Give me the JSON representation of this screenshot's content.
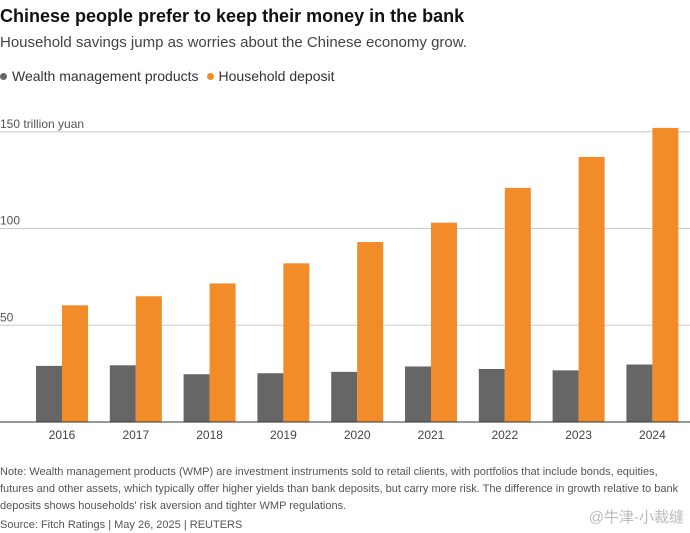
{
  "title": "Chinese people prefer to keep their money in the bank",
  "subtitle": "Household savings jump as worries about the Chinese economy grow.",
  "note": "Note: Wealth management products (WMP) are investment instruments sold to retail clients, with portfolios that include bonds, equities, futures and other assets, which typically offer higher yields than bank deposits, but carry more risk. The difference in growth relative to bank deposits shows households' risk aversion and tighter WMP regulations.",
  "source": "Source: Fitch Ratings | May 26, 2025 | REUTERS",
  "watermark": "@牛津-小裁缝",
  "colors": {
    "wmp": "#666666",
    "deposit": "#f28c28",
    "grid": "#cccccc",
    "axis": "#333333"
  },
  "chart_data": {
    "type": "bar",
    "categories": [
      "2016",
      "2017",
      "2018",
      "2019",
      "2020",
      "2021",
      "2022",
      "2023",
      "2024"
    ],
    "series": [
      {
        "name": "Wealth management products",
        "values": [
          29,
          29.3,
          24.7,
          25.2,
          25.9,
          28.7,
          27.4,
          26.7,
          29.7
        ]
      },
      {
        "name": "Household deposit",
        "values": [
          60.3,
          65,
          71.6,
          82,
          93,
          103,
          121,
          137,
          152
        ]
      }
    ],
    "y_ticks": [
      {
        "value": 150,
        "label": "150 trillion yuan"
      },
      {
        "value": 100,
        "label": "100"
      },
      {
        "value": 50,
        "label": "50"
      }
    ],
    "ylim": [
      0,
      155
    ],
    "grid": true,
    "legend_position": "top-left"
  }
}
